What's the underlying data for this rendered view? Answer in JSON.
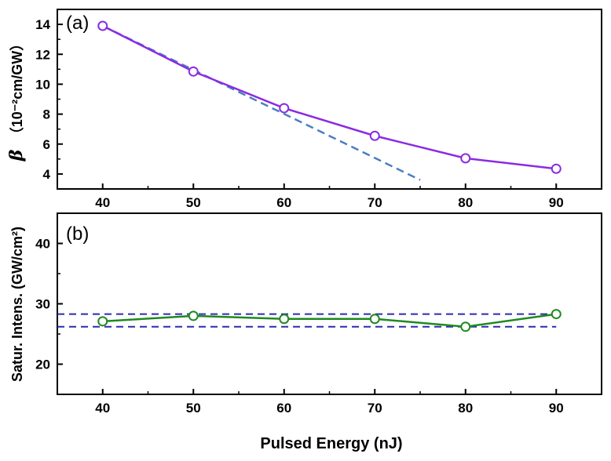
{
  "chart_data": [
    {
      "type": "line",
      "panel_label": "(a)",
      "ylabel_symbol": "β",
      "ylabel_unit": "（10⁻²cm/GW）",
      "xlim": [
        35,
        95
      ],
      "ylim": [
        3,
        15
      ],
      "x": [
        40,
        50,
        60,
        70,
        80,
        90
      ],
      "x_tick_labels": [
        "40",
        "50",
        "60",
        "70",
        "80",
        "90"
      ],
      "y_ticks": [
        4,
        6,
        8,
        10,
        12,
        14
      ],
      "y_tick_labels": [
        "4",
        "6",
        "8",
        "10",
        "12",
        "14"
      ],
      "series": [
        {
          "values": [
            13.9,
            10.85,
            8.4,
            6.55,
            5.05,
            4.35
          ],
          "color": "#8b2be2",
          "marker": "open-circle"
        }
      ],
      "fit_line": {
        "style": "dashed",
        "color": "#4a7fc1",
        "x": [
          40,
          75
        ],
        "y": [
          13.9,
          3.6
        ]
      }
    },
    {
      "type": "line",
      "panel_label": "(b)",
      "ylabel": "Satur. Intens. (GW/cm²)",
      "xlabel": "Pulsed Energy (nJ)",
      "xlim": [
        35,
        95
      ],
      "ylim": [
        15,
        45
      ],
      "x": [
        40,
        50,
        60,
        70,
        80,
        90
      ],
      "x_tick_labels": [
        "40",
        "50",
        "60",
        "70",
        "80",
        "90"
      ],
      "y_ticks": [
        20,
        30,
        40
      ],
      "y_tick_labels": [
        "20",
        "30",
        "40"
      ],
      "series": [
        {
          "values": [
            27.1,
            28.0,
            27.5,
            27.5,
            26.2,
            28.3
          ],
          "color": "#1f8a1f",
          "marker": "open-circle"
        }
      ],
      "reference_lines": [
        {
          "y": 28.3,
          "style": "dashed",
          "color": "#2b2bb0"
        },
        {
          "y": 26.2,
          "style": "dashed",
          "color": "#2b2bb0"
        }
      ]
    }
  ]
}
